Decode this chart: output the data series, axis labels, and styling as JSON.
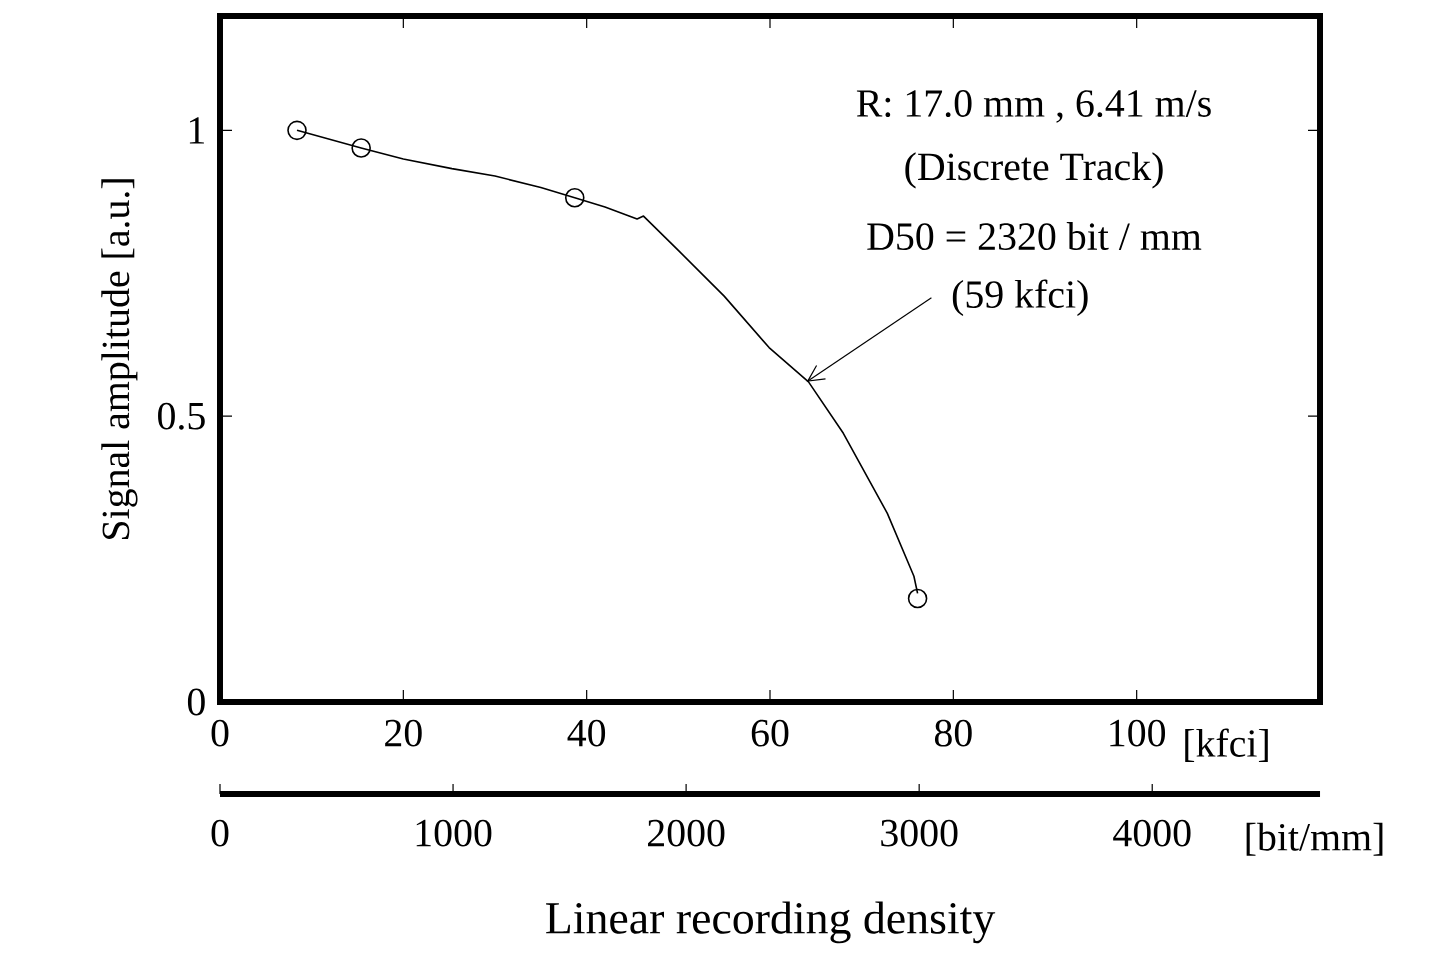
{
  "chart_data": {
    "type": "line",
    "xlabel": "Linear recording density",
    "ylabel": "Signal amplitude  [a.u.]",
    "xlim": [
      0,
      120
    ],
    "xticks": [
      0,
      20,
      40,
      60,
      80,
      100,
      {
        "value": 120,
        "label": null
      }
    ],
    "ylim": [
      0,
      1.2
    ],
    "yticks": [
      0,
      0.5,
      1
    ],
    "x2lim": [
      0,
      4720
    ],
    "x2ticks": [
      0,
      1000,
      2000,
      3000,
      4000
    ],
    "series": [
      {
        "color": "#000000",
        "x": [
          8.4,
          15.4,
          20,
          25.3,
          30,
          35,
          38.7,
          42,
          45.5,
          46.2,
          50,
          55,
          59.9,
          64.2,
          68,
          72.8,
          75.7,
          76.1
        ],
        "values": [
          1.0,
          0.969,
          0.95,
          0.933,
          0.92,
          0.9,
          0.882,
          0.866,
          0.845,
          0.85,
          0.79,
          0.71,
          0.62,
          0.56,
          0.47,
          0.33,
          0.22,
          0.19
        ]
      },
      {
        "type": "scatter",
        "color": "#000000",
        "marker": "circle",
        "x": [
          8.4,
          15.4,
          38.7,
          76.1
        ],
        "values": [
          1.0,
          0.969,
          0.882,
          0.181
        ]
      }
    ],
    "annotations": [
      "R: 17.0 mm , 6.41 m/s",
      "(Discrete Track)",
      "D50 = 2320 bit / mm",
      {
        "text": "(59 kfci)",
        "x": 64,
        "y": 0.56
      },
      "[kfci]",
      "[bit/mm]"
    ]
  }
}
